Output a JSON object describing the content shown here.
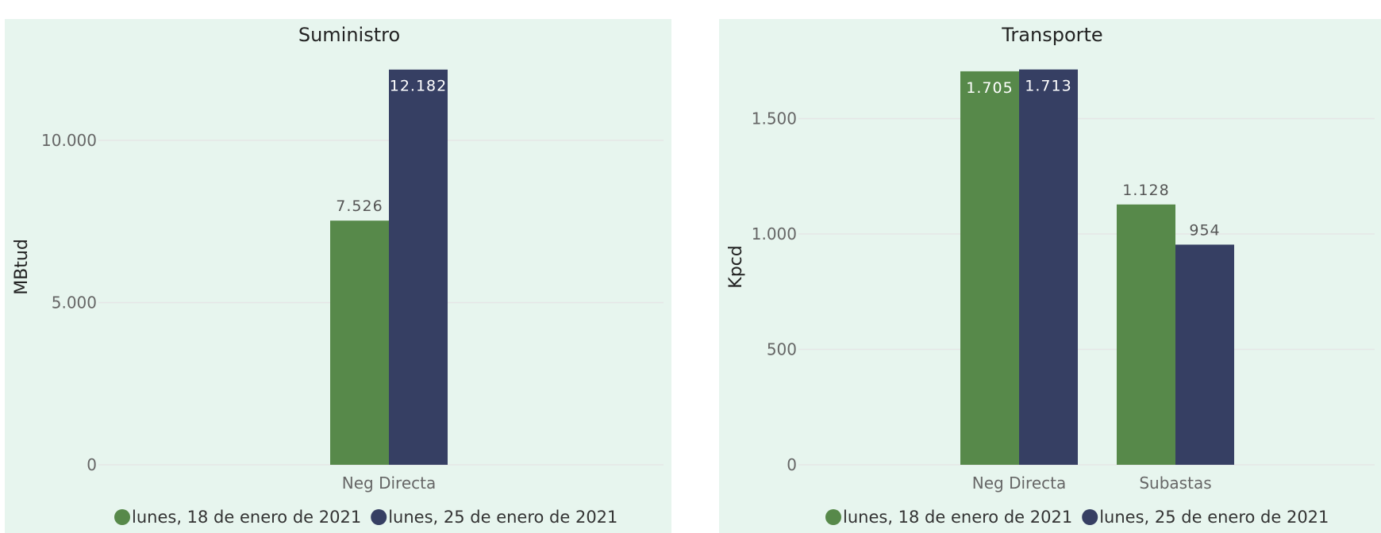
{
  "colors": {
    "series_a": "#57894a",
    "series_b": "#363f63",
    "grid": "#e6e6e6",
    "panel_bg": "#e7f5ee"
  },
  "chart_data": [
    {
      "type": "bar",
      "title": "Suministro",
      "ylabel": "MBtud",
      "xlabel": "",
      "categories": [
        "Neg Directa"
      ],
      "series": [
        {
          "name": "lunes, 18 de enero de 2021",
          "values": [
            7526
          ]
        },
        {
          "name": "lunes, 25 de enero de 2021",
          "values": [
            12182
          ]
        }
      ],
      "data_labels": [
        [
          "7.526"
        ],
        [
          "12.182"
        ]
      ],
      "yticks": [
        0,
        5000,
        10000
      ],
      "ytick_labels": [
        "0",
        "5.000",
        "10.000"
      ],
      "ylim": [
        0,
        12200
      ],
      "grid": true,
      "legend": "bottom-left"
    },
    {
      "type": "bar",
      "title": "Transporte",
      "ylabel": "Kpcd",
      "xlabel": "",
      "categories": [
        "Neg Directa",
        "Subastas"
      ],
      "series": [
        {
          "name": "lunes, 18 de enero de 2021",
          "values": [
            1705,
            1128
          ]
        },
        {
          "name": "lunes, 25 de enero de 2021",
          "values": [
            1713,
            954
          ]
        }
      ],
      "data_labels": [
        [
          "1.705",
          "1.128"
        ],
        [
          "1.713",
          "954"
        ]
      ],
      "yticks": [
        0,
        500,
        1000,
        1500
      ],
      "ytick_labels": [
        "0",
        "500",
        "1.000",
        "1.500"
      ],
      "ylim": [
        0,
        1715
      ],
      "grid": true,
      "legend": "bottom-left"
    }
  ]
}
